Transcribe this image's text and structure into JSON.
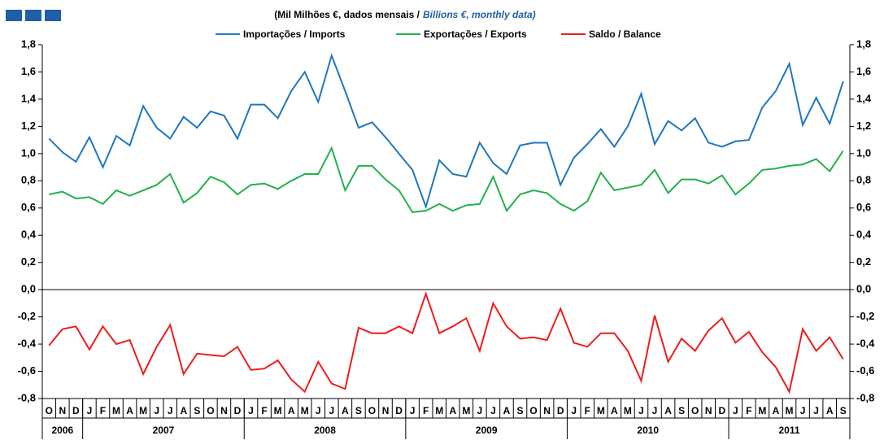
{
  "chart_data": {
    "type": "line",
    "title": "(Mil Milhões €, dados mensais /",
    "title_en": "Billions €, monthly data)",
    "categories": [
      "O",
      "N",
      "D",
      "J",
      "F",
      "M",
      "A",
      "M",
      "J",
      "J",
      "A",
      "S",
      "O",
      "N",
      "D",
      "J",
      "F",
      "M",
      "A",
      "M",
      "J",
      "J",
      "A",
      "S",
      "O",
      "N",
      "D",
      "J",
      "F",
      "M",
      "A",
      "M",
      "J",
      "J",
      "A",
      "S",
      "O",
      "N",
      "D",
      "J",
      "F",
      "M",
      "A",
      "M",
      "J",
      "J",
      "A",
      "S",
      "O",
      "N",
      "D",
      "J",
      "F",
      "M",
      "A",
      "M",
      "J",
      "J",
      "A",
      "S"
    ],
    "years": [
      "2006",
      "2007",
      "2008",
      "2009",
      "2010",
      "2011"
    ],
    "ylim": [
      -0.8,
      1.8
    ],
    "yticks": [
      {
        "value": -0.8,
        "label": "-0,8"
      },
      {
        "value": -0.6,
        "label": "-0,6"
      },
      {
        "value": -0.4,
        "label": "-0,4"
      },
      {
        "value": -0.2,
        "label": "-0,2"
      },
      {
        "value": 0,
        "label": "0,0"
      },
      {
        "value": 0.2,
        "label": "0,2"
      },
      {
        "value": 0.4,
        "label": "0,4"
      },
      {
        "value": 0.6,
        "label": "0,6"
      },
      {
        "value": 0.8,
        "label": "0,8"
      },
      {
        "value": 1,
        "label": "1,0"
      },
      {
        "value": 1.2,
        "label": "1,2"
      },
      {
        "value": 1.4,
        "label": "1,4"
      },
      {
        "value": 1.6,
        "label": "1,6"
      },
      {
        "value": 1.8,
        "label": "1,8"
      }
    ],
    "series": [
      {
        "name": "Importações / Imports",
        "color": "#1f77c0",
        "values": [
          1.11,
          1.01,
          0.94,
          1.12,
          0.9,
          1.13,
          1.06,
          1.35,
          1.19,
          1.11,
          1.27,
          1.19,
          1.31,
          1.28,
          1.11,
          1.36,
          1.36,
          1.26,
          1.46,
          1.6,
          1.38,
          1.72,
          1.46,
          1.19,
          1.23,
          1.12,
          1.0,
          0.88,
          0.61,
          0.95,
          0.85,
          0.83,
          1.08,
          0.93,
          0.85,
          1.06,
          1.08,
          1.08,
          0.77,
          0.97,
          1.07,
          1.18,
          1.05,
          1.2,
          1.44,
          1.07,
          1.24,
          1.17,
          1.26,
          1.08,
          1.05,
          1.09,
          1.1,
          1.34,
          1.46,
          1.66,
          1.21,
          1.41,
          1.22,
          1.53
        ]
      },
      {
        "name": "Exportações / Exports",
        "color": "#22b14c",
        "values": [
          0.7,
          0.72,
          0.67,
          0.68,
          0.63,
          0.73,
          0.69,
          0.73,
          0.77,
          0.85,
          0.64,
          0.71,
          0.83,
          0.79,
          0.7,
          0.77,
          0.78,
          0.74,
          0.8,
          0.85,
          0.85,
          1.04,
          0.73,
          0.91,
          0.91,
          0.81,
          0.73,
          0.57,
          0.58,
          0.63,
          0.58,
          0.62,
          0.63,
          0.83,
          0.58,
          0.7,
          0.73,
          0.71,
          0.63,
          0.58,
          0.65,
          0.86,
          0.73,
          0.75,
          0.77,
          0.88,
          0.71,
          0.81,
          0.81,
          0.78,
          0.84,
          0.7,
          0.78,
          0.88,
          0.89,
          0.91,
          0.92,
          0.96,
          0.87,
          1.02
        ]
      },
      {
        "name": "Saldo / Balance",
        "color": "#ee1c1c",
        "values": [
          -0.41,
          -0.29,
          -0.27,
          -0.44,
          -0.27,
          -0.4,
          -0.37,
          -0.62,
          -0.42,
          -0.26,
          -0.62,
          -0.47,
          -0.48,
          -0.49,
          -0.42,
          -0.59,
          -0.58,
          -0.52,
          -0.66,
          -0.75,
          -0.53,
          -0.69,
          -0.73,
          -0.28,
          -0.32,
          -0.32,
          -0.27,
          -0.32,
          -0.03,
          -0.32,
          -0.27,
          -0.21,
          -0.45,
          -0.1,
          -0.27,
          -0.36,
          -0.35,
          -0.37,
          -0.14,
          -0.39,
          -0.42,
          -0.32,
          -0.32,
          -0.45,
          -0.67,
          -0.19,
          -0.53,
          -0.36,
          -0.45,
          -0.3,
          -0.21,
          -0.39,
          -0.31,
          -0.46,
          -0.57,
          -0.75,
          -0.29,
          -0.45,
          -0.35,
          -0.51
        ]
      }
    ]
  }
}
